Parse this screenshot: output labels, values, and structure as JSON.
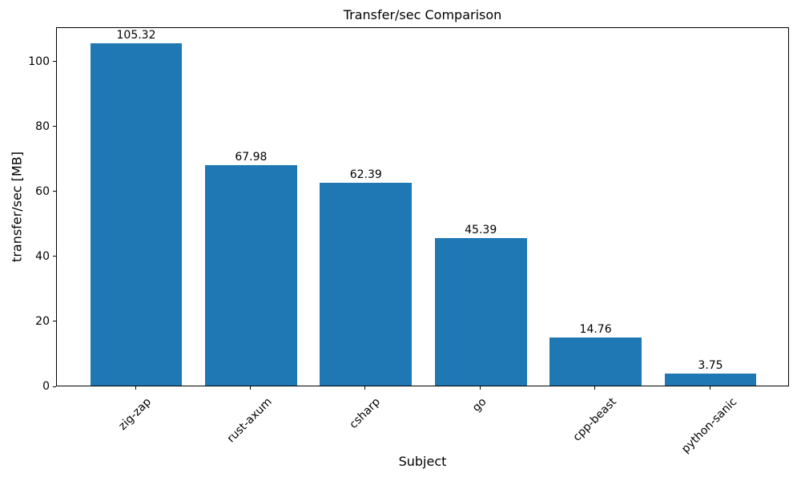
{
  "figure": {
    "background": "#ffffff"
  },
  "chart_data": {
    "type": "bar",
    "title": "Transfer/sec Comparison",
    "xlabel": "Subject",
    "ylabel": "transfer/sec [MB]",
    "categories": [
      "zig-zap",
      "rust-axum",
      "csharp",
      "go",
      "cpp-beast",
      "python-sanic"
    ],
    "values": [
      105.32,
      67.98,
      62.39,
      45.39,
      14.76,
      3.75
    ],
    "bar_labels": [
      "105.32",
      "67.98",
      "62.39",
      "45.39",
      "14.76",
      "3.75"
    ],
    "yticks": [
      0,
      20,
      40,
      60,
      80,
      100
    ],
    "ylim": [
      0,
      110.6
    ],
    "xtick_rotation_deg": 45,
    "grid": false,
    "legend": "none",
    "bar_color": "#1f77b4",
    "axis_color": "#000000",
    "text_color": "#000000"
  }
}
